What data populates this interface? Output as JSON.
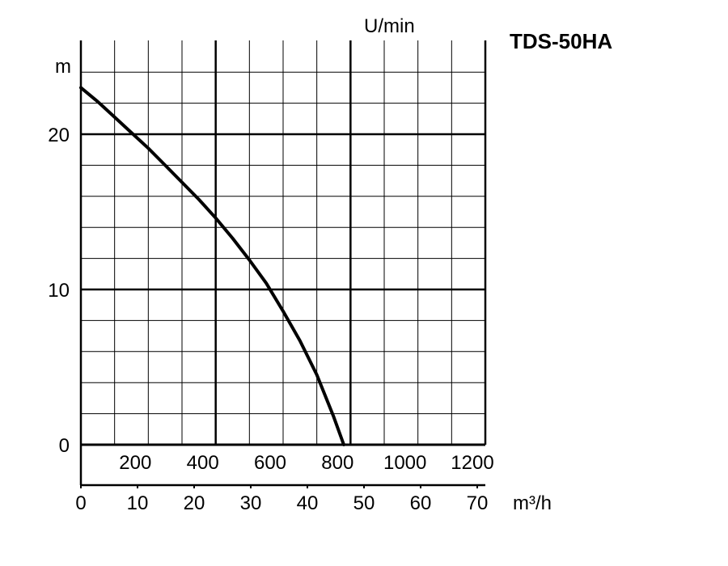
{
  "chart_data": {
    "type": "line",
    "title": "TDS-50HA",
    "ylabel": "m",
    "top_unit_label": "U/min",
    "xlabel_primary": "U/min",
    "xlabel_secondary": "m³/h",
    "xlim_lpm": [
      0,
      1200
    ],
    "ylim": [
      0,
      25
    ],
    "x_tick_labels_lpm": [
      "200",
      "400",
      "600",
      "800",
      "1000",
      "1200"
    ],
    "x_tick_labels_m3h": [
      "0",
      "10",
      "20",
      "30",
      "40",
      "50",
      "60",
      "70"
    ],
    "y_tick_labels": [
      "0",
      "10",
      "20"
    ],
    "grid": true,
    "series": [
      {
        "x": [
          0,
          50,
          100,
          150,
          200,
          250,
          300,
          350,
          400,
          450,
          500,
          550,
          600,
          650,
          700,
          750,
          780
        ],
        "y": [
          23,
          22.1,
          21.1,
          20.1,
          19.1,
          18.0,
          16.9,
          15.8,
          14.6,
          13.3,
          11.9,
          10.4,
          8.6,
          6.7,
          4.5,
          1.8,
          0
        ]
      }
    ]
  }
}
